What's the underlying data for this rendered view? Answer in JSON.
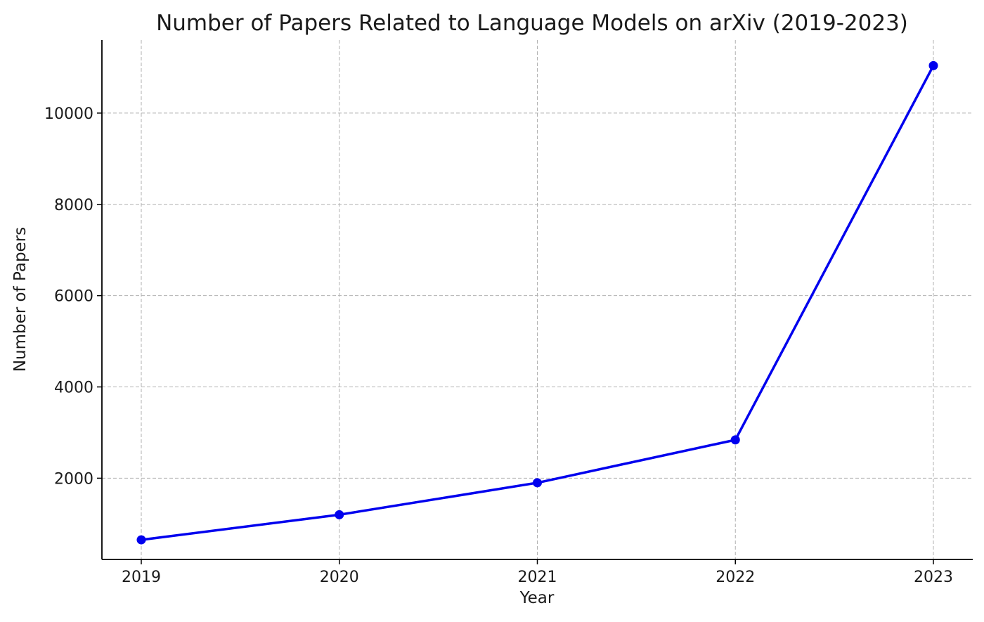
{
  "chart_data": {
    "type": "line",
    "title": "Number of Papers Related to Language Models on arXiv (2019-2023)",
    "xlabel": "Year",
    "ylabel": "Number of Papers",
    "x": [
      "2019",
      "2020",
      "2021",
      "2022",
      "2023"
    ],
    "series": [
      {
        "values": [
          650,
          1200,
          1900,
          2840,
          11040
        ],
        "color": "#0000ee",
        "marker": "circle"
      }
    ],
    "yticks": [
      "2000",
      "4000",
      "6000",
      "8000",
      "10000"
    ],
    "ylim": [
      220,
      11600
    ],
    "grid": true,
    "legend": "none"
  }
}
